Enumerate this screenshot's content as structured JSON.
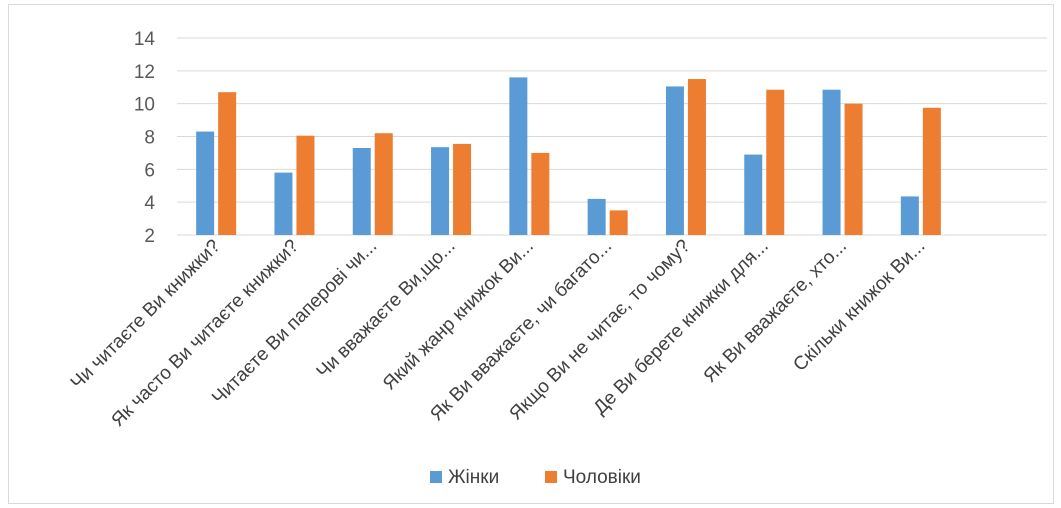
{
  "chart_data": {
    "type": "bar",
    "title": "",
    "xlabel": "",
    "ylabel": "",
    "ylim": [
      2,
      14
    ],
    "yticks": [
      2,
      4,
      6,
      8,
      10,
      12,
      14
    ],
    "grid": true,
    "legend_position": "bottom",
    "categories": [
      "Чи читаєте Ви книжки?",
      "Як часто Ви читаєте книжки?",
      "Читаєте Ви паперові чи...",
      "Чи вважаєте Ви,що...",
      "Який жанр книжок Ви...",
      "Як Ви вважаєте, чи багато...",
      "Якщо Ви не читає, то чому?",
      "Де Ви берете книжки для...",
      "Як Ви вважаєте, хто...",
      "Скільки книжок Ви..."
    ],
    "series": [
      {
        "name": "Жінки",
        "color": "#5b9bd5",
        "values": [
          8.3,
          5.8,
          7.3,
          7.35,
          11.6,
          4.2,
          11.05,
          6.9,
          10.85,
          4.35
        ]
      },
      {
        "name": "Чоловіки",
        "color": "#ed7d31",
        "values": [
          10.7,
          8.05,
          8.2,
          7.55,
          7.0,
          3.5,
          11.5,
          10.85,
          10.0,
          9.75
        ]
      }
    ]
  }
}
